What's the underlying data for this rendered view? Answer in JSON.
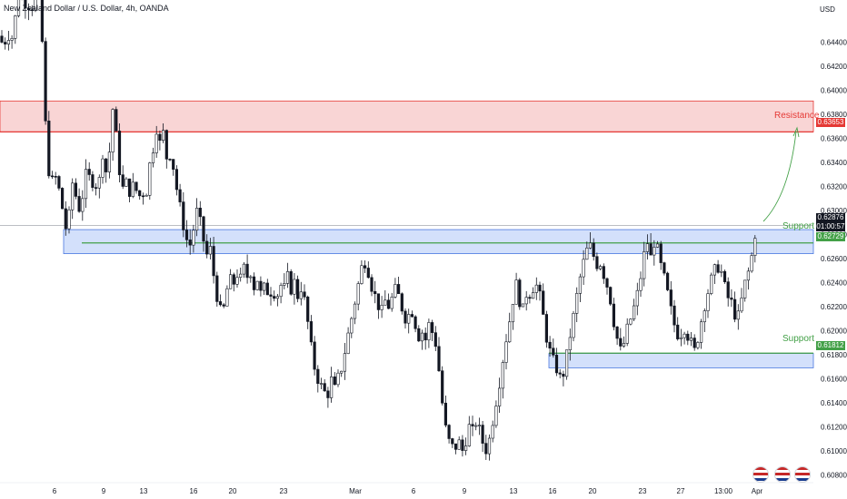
{
  "header": {
    "title": "New Zealand Dollar / U.S. Dollar, 4h, OANDA"
  },
  "axis": {
    "currency": "USD"
  },
  "price_badge": {
    "value": "0.62876",
    "countdown": "01:00:57"
  },
  "zones": {
    "resistance": {
      "label": "Resistance",
      "value": "0.63653",
      "color": "#e53935"
    },
    "support1": {
      "label": "Support",
      "value": "0.62729",
      "color": "#43a047"
    },
    "support2": {
      "label": "Support",
      "value": "0.61812",
      "color": "#43a047"
    }
  },
  "colors": {
    "up": "#ffffff",
    "down": "#131722",
    "resistance_fill": "#f9d5d5",
    "support_fill": "#d3e0fb",
    "support_line": "#43a047",
    "resistance_line": "#e53935",
    "arrow": "#43a047"
  },
  "chart_data": {
    "type": "candlestick",
    "title": "New Zealand Dollar / U.S. Dollar, 4h, OANDA",
    "ylabel": "USD",
    "ylim": [
      0.6075,
      0.6475
    ],
    "y_ticks": [
      "0.64400",
      "0.64200",
      "0.64000",
      "0.63800",
      "0.63600",
      "0.63400",
      "0.63200",
      "0.63000",
      "0.62800",
      "0.62600",
      "0.62400",
      "0.62200",
      "0.62000",
      "0.61800",
      "0.61600",
      "0.61400",
      "0.61200",
      "0.61000",
      "0.60800"
    ],
    "x_ticks": [
      "6",
      "9",
      "13",
      "16",
      "20",
      "23",
      "Mar",
      "6",
      "9",
      "13",
      "16",
      "20",
      "23",
      "27",
      "13:00",
      "Apr"
    ],
    "levels": [
      {
        "name": "Resistance",
        "y": 0.63653,
        "zone": [
          0.63653,
          0.6391
        ]
      },
      {
        "name": "Support",
        "y": 0.62729,
        "zone": [
          0.6264,
          0.6284
        ]
      },
      {
        "name": "Support",
        "y": 0.61812,
        "zone": [
          0.6169,
          0.6181
        ]
      }
    ],
    "last_price": 0.62876,
    "path": [
      [
        0,
        0.6445
      ],
      [
        4,
        0.6435
      ],
      [
        8,
        0.645
      ],
      [
        12,
        0.644
      ],
      [
        16,
        0.6455
      ],
      [
        20,
        0.648
      ],
      [
        26,
        0.6475
      ],
      [
        30,
        0.6472
      ],
      [
        36,
        0.647
      ],
      [
        42,
        0.648
      ],
      [
        46,
        0.645
      ],
      [
        48,
        0.64
      ],
      [
        52,
        0.6345
      ],
      [
        56,
        0.632
      ],
      [
        60,
        0.633
      ],
      [
        64,
        0.632
      ],
      [
        68,
        0.6305
      ],
      [
        72,
        0.6285
      ],
      [
        76,
        0.6295
      ],
      [
        80,
        0.6325
      ],
      [
        84,
        0.631
      ],
      [
        88,
        0.63
      ],
      [
        92,
        0.6318
      ],
      [
        96,
        0.6335
      ],
      [
        100,
        0.632
      ],
      [
        104,
        0.633
      ],
      [
        108,
        0.631
      ],
      [
        112,
        0.6355
      ],
      [
        116,
        0.633
      ],
      [
        120,
        0.6345
      ],
      [
        124,
        0.6385
      ],
      [
        128,
        0.636
      ],
      [
        132,
        0.633
      ],
      [
        136,
        0.6315
      ],
      [
        140,
        0.6325
      ],
      [
        144,
        0.6312
      ],
      [
        148,
        0.6325
      ],
      [
        152,
        0.6308
      ],
      [
        156,
        0.6318
      ],
      [
        160,
        0.631
      ],
      [
        164,
        0.6335
      ],
      [
        168,
        0.635
      ],
      [
        172,
        0.637
      ],
      [
        176,
        0.6355
      ],
      [
        180,
        0.6365
      ],
      [
        184,
        0.634
      ],
      [
        188,
        0.635
      ],
      [
        192,
        0.633
      ],
      [
        196,
        0.631
      ],
      [
        200,
        0.6295
      ],
      [
        204,
        0.628
      ],
      [
        208,
        0.6268
      ],
      [
        212,
        0.628
      ],
      [
        216,
        0.63
      ],
      [
        220,
        0.629
      ],
      [
        224,
        0.6275
      ],
      [
        228,
        0.6262
      ],
      [
        232,
        0.6268
      ],
      [
        236,
        0.624
      ],
      [
        240,
        0.6225
      ],
      [
        244,
        0.621
      ],
      [
        248,
        0.6225
      ],
      [
        252,
        0.6245
      ],
      [
        256,
        0.6235
      ],
      [
        260,
        0.625
      ],
      [
        264,
        0.624
      ],
      [
        268,
        0.6252
      ],
      [
        272,
        0.6245
      ],
      [
        276,
        0.625
      ],
      [
        280,
        0.6235
      ],
      [
        284,
        0.6245
      ],
      [
        288,
        0.6225
      ],
      [
        292,
        0.624
      ],
      [
        296,
        0.6228
      ],
      [
        300,
        0.6238
      ],
      [
        304,
        0.6225
      ],
      [
        308,
        0.624
      ],
      [
        312,
        0.6232
      ],
      [
        316,
        0.6245
      ],
      [
        320,
        0.6235
      ],
      [
        324,
        0.624
      ],
      [
        328,
        0.6228
      ],
      [
        332,
        0.6238
      ],
      [
        336,
        0.622
      ],
      [
        340,
        0.62
      ],
      [
        344,
        0.6175
      ],
      [
        348,
        0.6165
      ],
      [
        352,
        0.6155
      ],
      [
        356,
        0.615
      ],
      [
        360,
        0.6145
      ],
      [
        364,
        0.616
      ],
      [
        368,
        0.615
      ],
      [
        372,
        0.616
      ],
      [
        376,
        0.617
      ],
      [
        380,
        0.6185
      ],
      [
        384,
        0.62
      ],
      [
        388,
        0.6215
      ],
      [
        392,
        0.623
      ],
      [
        396,
        0.6245
      ],
      [
        400,
        0.626
      ],
      [
        404,
        0.6255
      ],
      [
        408,
        0.624
      ],
      [
        412,
        0.623
      ],
      [
        416,
        0.6222
      ],
      [
        420,
        0.6215
      ],
      [
        424,
        0.6225
      ],
      [
        428,
        0.622
      ],
      [
        432,
        0.6228
      ],
      [
        436,
        0.6235
      ],
      [
        440,
        0.6225
      ],
      [
        444,
        0.6215
      ],
      [
        448,
        0.6208
      ],
      [
        452,
        0.622
      ],
      [
        456,
        0.621
      ],
      [
        460,
        0.6195
      ],
      [
        464,
        0.62
      ],
      [
        468,
        0.6192
      ],
      [
        472,
        0.6205
      ],
      [
        476,
        0.6198
      ],
      [
        480,
        0.6188
      ],
      [
        484,
        0.616
      ],
      [
        488,
        0.613
      ],
      [
        492,
        0.611
      ],
      [
        496,
        0.6105
      ],
      [
        500,
        0.61
      ],
      [
        504,
        0.611
      ],
      [
        508,
        0.6098
      ],
      [
        512,
        0.6108
      ],
      [
        516,
        0.612
      ],
      [
        520,
        0.6115
      ],
      [
        524,
        0.6125
      ],
      [
        528,
        0.6115
      ],
      [
        532,
        0.6105
      ],
      [
        536,
        0.61
      ],
      [
        540,
        0.6115
      ],
      [
        544,
        0.6135
      ],
      [
        548,
        0.615
      ],
      [
        552,
        0.617
      ],
      [
        556,
        0.619
      ],
      [
        560,
        0.6205
      ],
      [
        564,
        0.6225
      ],
      [
        568,
        0.6238
      ],
      [
        572,
        0.6225
      ],
      [
        576,
        0.6215
      ],
      [
        580,
        0.6235
      ],
      [
        584,
        0.623
      ],
      [
        588,
        0.624
      ],
      [
        592,
        0.6235
      ],
      [
        596,
        0.622
      ],
      [
        600,
        0.62
      ],
      [
        604,
        0.6185
      ],
      [
        608,
        0.6175
      ],
      [
        612,
        0.617
      ],
      [
        616,
        0.616
      ],
      [
        620,
        0.6165
      ],
      [
        624,
        0.618
      ],
      [
        628,
        0.62
      ],
      [
        632,
        0.6215
      ],
      [
        636,
        0.6235
      ],
      [
        640,
        0.625
      ],
      [
        644,
        0.6262
      ],
      [
        648,
        0.6272
      ],
      [
        652,
        0.6265
      ],
      [
        656,
        0.6255
      ],
      [
        660,
        0.6258
      ],
      [
        664,
        0.6248
      ],
      [
        668,
        0.6238
      ],
      [
        672,
        0.6225
      ],
      [
        676,
        0.6205
      ],
      [
        680,
        0.619
      ],
      [
        684,
        0.618
      ],
      [
        688,
        0.6195
      ],
      [
        692,
        0.6205
      ],
      [
        696,
        0.6215
      ],
      [
        700,
        0.6225
      ],
      [
        704,
        0.624
      ],
      [
        708,
        0.626
      ],
      [
        712,
        0.6275
      ],
      [
        716,
        0.626
      ],
      [
        720,
        0.6275
      ],
      [
        724,
        0.6265
      ],
      [
        728,
        0.625
      ],
      [
        732,
        0.624
      ],
      [
        736,
        0.6225
      ],
      [
        740,
        0.621
      ],
      [
        744,
        0.62
      ],
      [
        748,
        0.6195
      ],
      [
        752,
        0.6205
      ],
      [
        756,
        0.6198
      ],
      [
        760,
        0.619
      ],
      [
        764,
        0.6182
      ],
      [
        768,
        0.6195
      ],
      [
        772,
        0.621
      ],
      [
        776,
        0.6225
      ],
      [
        780,
        0.6235
      ],
      [
        784,
        0.6245
      ],
      [
        788,
        0.6252
      ],
      [
        792,
        0.6255
      ],
      [
        796,
        0.624
      ],
      [
        800,
        0.6228
      ],
      [
        804,
        0.6225
      ],
      [
        808,
        0.6215
      ],
      [
        812,
        0.621
      ],
      [
        816,
        0.6225
      ],
      [
        820,
        0.624
      ],
      [
        824,
        0.625
      ],
      [
        828,
        0.6265
      ],
      [
        832,
        0.6288
      ]
    ]
  }
}
